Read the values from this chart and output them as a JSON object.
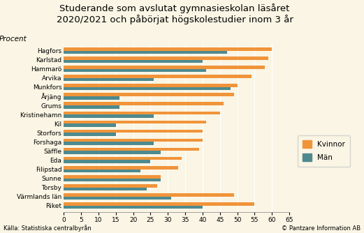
{
  "title": "Studerande som avslutat gymnasieskolan läsåret\n2020/2021 och påbörjat högskolestudier inom 3 år",
  "ylabel_label": "Procent",
  "categories": [
    "Riket",
    "Värmlands län",
    "Torsby",
    "Sunne",
    "Filipstad",
    "Eda",
    "Säffle",
    "Forshaga",
    "Storfors",
    "Kil",
    "Kristinehamn",
    "Grums",
    "Årjäng",
    "Munkfors",
    "Arvika",
    "Hammarö",
    "Karlstad",
    "Hagfors"
  ],
  "kvinnor": [
    55,
    49,
    27,
    28,
    33,
    34,
    39,
    40,
    40,
    41,
    45,
    46,
    49,
    50,
    54,
    58,
    59,
    60
  ],
  "man": [
    40,
    31,
    24,
    28,
    22,
    25,
    28,
    26,
    15,
    15,
    26,
    16,
    16,
    48,
    26,
    41,
    40,
    47
  ],
  "color_kvinnor": "#f0943a",
  "color_man": "#4d8a8f",
  "background_color": "#faf5e4",
  "legend_background": "#faf5e4",
  "xlim": [
    0,
    65
  ],
  "xticks": [
    0,
    5,
    10,
    15,
    20,
    25,
    30,
    35,
    40,
    45,
    50,
    55,
    60,
    65
  ],
  "footer_left": "Källa: Statistiska centralbyrån",
  "footer_right": "© Pantzare Information AB",
  "title_fontsize": 9.5,
  "tick_fontsize": 6.5,
  "legend_fontsize": 7.5,
  "ylabel_fontsize": 7.5,
  "footer_fontsize": 6.0
}
